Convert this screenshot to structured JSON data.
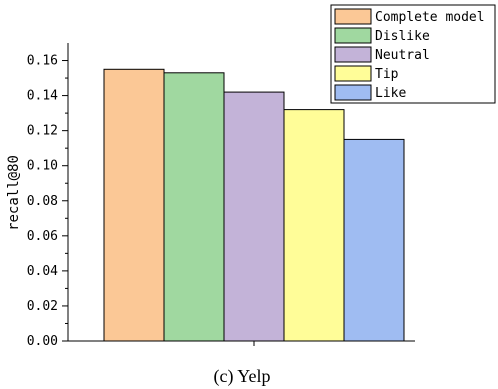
{
  "chart_data": {
    "type": "bar",
    "title": "",
    "caption": "(c) Yelp",
    "xlabel": "",
    "ylabel": "recall@80",
    "ylim": [
      0,
      0.17
    ],
    "yticks": [
      "0.00",
      "0.02",
      "0.04",
      "0.06",
      "0.08",
      "0.10",
      "0.12",
      "0.14",
      "0.16"
    ],
    "grid": false,
    "legend_position": "top-right",
    "categories": [
      "Complete model",
      "Dislike",
      "Neutral",
      "Tip",
      "Like"
    ],
    "values": [
      0.155,
      0.153,
      0.142,
      0.132,
      0.115
    ],
    "colors": [
      "#fbc896",
      "#a0d8a0",
      "#c3b3d8",
      "#fffd98",
      "#9fbcf2"
    ],
    "edge_color": "#000000"
  }
}
